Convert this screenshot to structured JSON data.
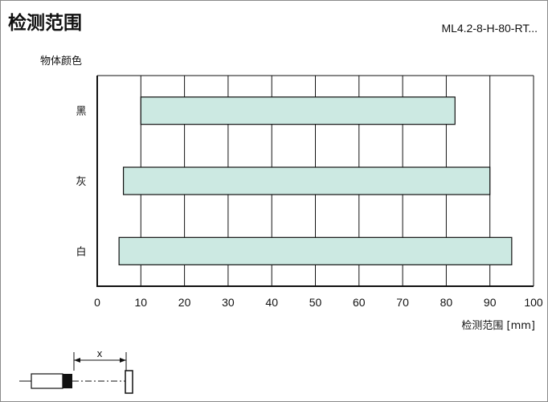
{
  "header": {
    "title": "检测范围",
    "model": "ML4.2-8-H-80-RT..."
  },
  "chart_data": {
    "type": "bar",
    "orientation": "horizontal",
    "title": "检测范围",
    "ylabel": "物体颜色",
    "xlabel": "检测范围 [mm]",
    "categories": [
      "黑",
      "灰",
      "白"
    ],
    "series": [
      {
        "ranges": [
          [
            10,
            82
          ],
          [
            6,
            90
          ],
          [
            5,
            95
          ]
        ]
      }
    ],
    "xlim": [
      0,
      100
    ],
    "xticks": [
      0,
      10,
      20,
      30,
      40,
      50,
      60,
      70,
      80,
      90,
      100
    ],
    "grid": true,
    "bar_color": "#cce9e2",
    "bar_edge_color": "#111111"
  },
  "diagram": {
    "distance_label": "x"
  }
}
